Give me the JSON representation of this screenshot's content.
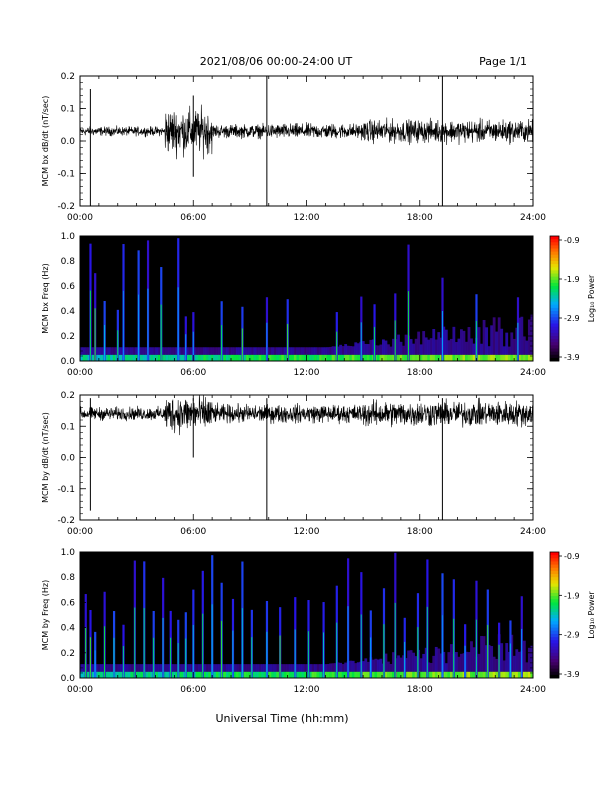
{
  "header": {
    "title": "2021/08/06  00:00-24:00 UT",
    "page": "Page 1/1"
  },
  "footer": {
    "xlabel": "Universal Time (hh:mm)"
  },
  "chart_data": [
    {
      "type": "line",
      "ylabel": "MCM bx dB/dt (nT/sec)",
      "ylim": [
        -0.2,
        0.2
      ],
      "yticks": [
        "0.2",
        "0.1",
        "0.0",
        "-0.1",
        "-0.2"
      ],
      "xlim": [
        0,
        24
      ],
      "xticks": [
        "00:00",
        "06:00",
        "12:00",
        "18:00",
        "24:00"
      ],
      "baseline": 0.03,
      "noise_profile": [
        {
          "from": 0,
          "to": 4.5,
          "amp": 0.012
        },
        {
          "from": 4.5,
          "to": 7.0,
          "amp": 0.06
        },
        {
          "from": 7.0,
          "to": 10.0,
          "amp": 0.018
        },
        {
          "from": 10.0,
          "to": 15.0,
          "amp": 0.02
        },
        {
          "from": 15.0,
          "to": 24.0,
          "amp": 0.03
        }
      ],
      "spikes": [
        {
          "x": 0.55,
          "y": [
            -0.2,
            0.16
          ]
        },
        {
          "x": 6.0,
          "y": [
            -0.11,
            0.14
          ]
        },
        {
          "x": 9.9,
          "y": [
            -0.2,
            0.2
          ]
        },
        {
          "x": 19.2,
          "y": [
            -0.2,
            0.2
          ]
        }
      ]
    },
    {
      "type": "heatmap",
      "ylabel": "MCM bx Freq (Hz)",
      "ylim": [
        0.0,
        1.0
      ],
      "yticks": [
        "1.0",
        "0.8",
        "0.6",
        "0.4",
        "0.2",
        "0.0"
      ],
      "xlim": [
        0,
        24
      ],
      "xticks": [
        "00:00",
        "06:00",
        "12:00",
        "18:00",
        "24:00"
      ],
      "colorbar": {
        "label": "Log₁₀ Power",
        "ticks": [
          "-0.9",
          "-1.9",
          "-2.9",
          "-3.9"
        ],
        "range": [
          -3.9,
          -0.9
        ]
      },
      "events": [
        0.55,
        0.8,
        1.3,
        2.0,
        2.3,
        3.1,
        3.6,
        4.3,
        5.2,
        5.6,
        6.0,
        7.5,
        8.6,
        9.9,
        11.0,
        13.6,
        14.9,
        15.6,
        16.7,
        17.4,
        19.2,
        21.0,
        23.2
      ]
    },
    {
      "type": "line",
      "ylabel": "MCM by dB/dt (nT/sec)",
      "ylim": [
        -0.2,
        0.2
      ],
      "yticks": [
        "0.2",
        "0.1",
        "0.0",
        "-0.1",
        "-0.2"
      ],
      "xlim": [
        0,
        24
      ],
      "xticks": [
        "00:00",
        "06:00",
        "12:00",
        "18:00",
        "24:00"
      ],
      "baseline": 0.14,
      "noise_profile": [
        {
          "from": 0,
          "to": 4.5,
          "amp": 0.018
        },
        {
          "from": 4.5,
          "to": 7.0,
          "amp": 0.05
        },
        {
          "from": 7.0,
          "to": 10.0,
          "amp": 0.025
        },
        {
          "from": 10.0,
          "to": 15.0,
          "amp": 0.025
        },
        {
          "from": 15.0,
          "to": 24.0,
          "amp": 0.035
        }
      ],
      "spikes": [
        {
          "x": 0.55,
          "y": [
            -0.17,
            0.19
          ]
        },
        {
          "x": 6.0,
          "y": [
            0.0,
            0.19
          ]
        },
        {
          "x": 9.9,
          "y": [
            -0.2,
            0.19
          ]
        },
        {
          "x": 19.2,
          "y": [
            -0.2,
            0.19
          ]
        }
      ]
    },
    {
      "type": "heatmap",
      "ylabel": "MCM by Freq (Hz)",
      "ylim": [
        0.0,
        1.0
      ],
      "yticks": [
        "1.0",
        "0.8",
        "0.6",
        "0.4",
        "0.2",
        "0.0"
      ],
      "xlim": [
        0,
        24
      ],
      "xticks": [
        "00:00",
        "06:00",
        "12:00",
        "18:00",
        "24:00"
      ],
      "colorbar": {
        "label": "Log₁₀ Power",
        "ticks": [
          "-0.9",
          "-1.9",
          "-2.9",
          "-3.9"
        ],
        "range": [
          -3.9,
          -0.9
        ]
      },
      "events": [
        0.3,
        0.55,
        0.8,
        1.3,
        1.8,
        2.3,
        2.9,
        3.4,
        3.9,
        4.4,
        4.8,
        5.2,
        5.6,
        6.0,
        6.5,
        7.0,
        7.5,
        8.1,
        8.6,
        9.1,
        9.9,
        10.6,
        11.4,
        12.1,
        12.9,
        13.6,
        14.2,
        14.9,
        15.4,
        16.1,
        16.7,
        17.2,
        17.9,
        18.4,
        19.2,
        19.8,
        20.4,
        21.0,
        21.6,
        22.2,
        22.8,
        23.4
      ]
    }
  ]
}
